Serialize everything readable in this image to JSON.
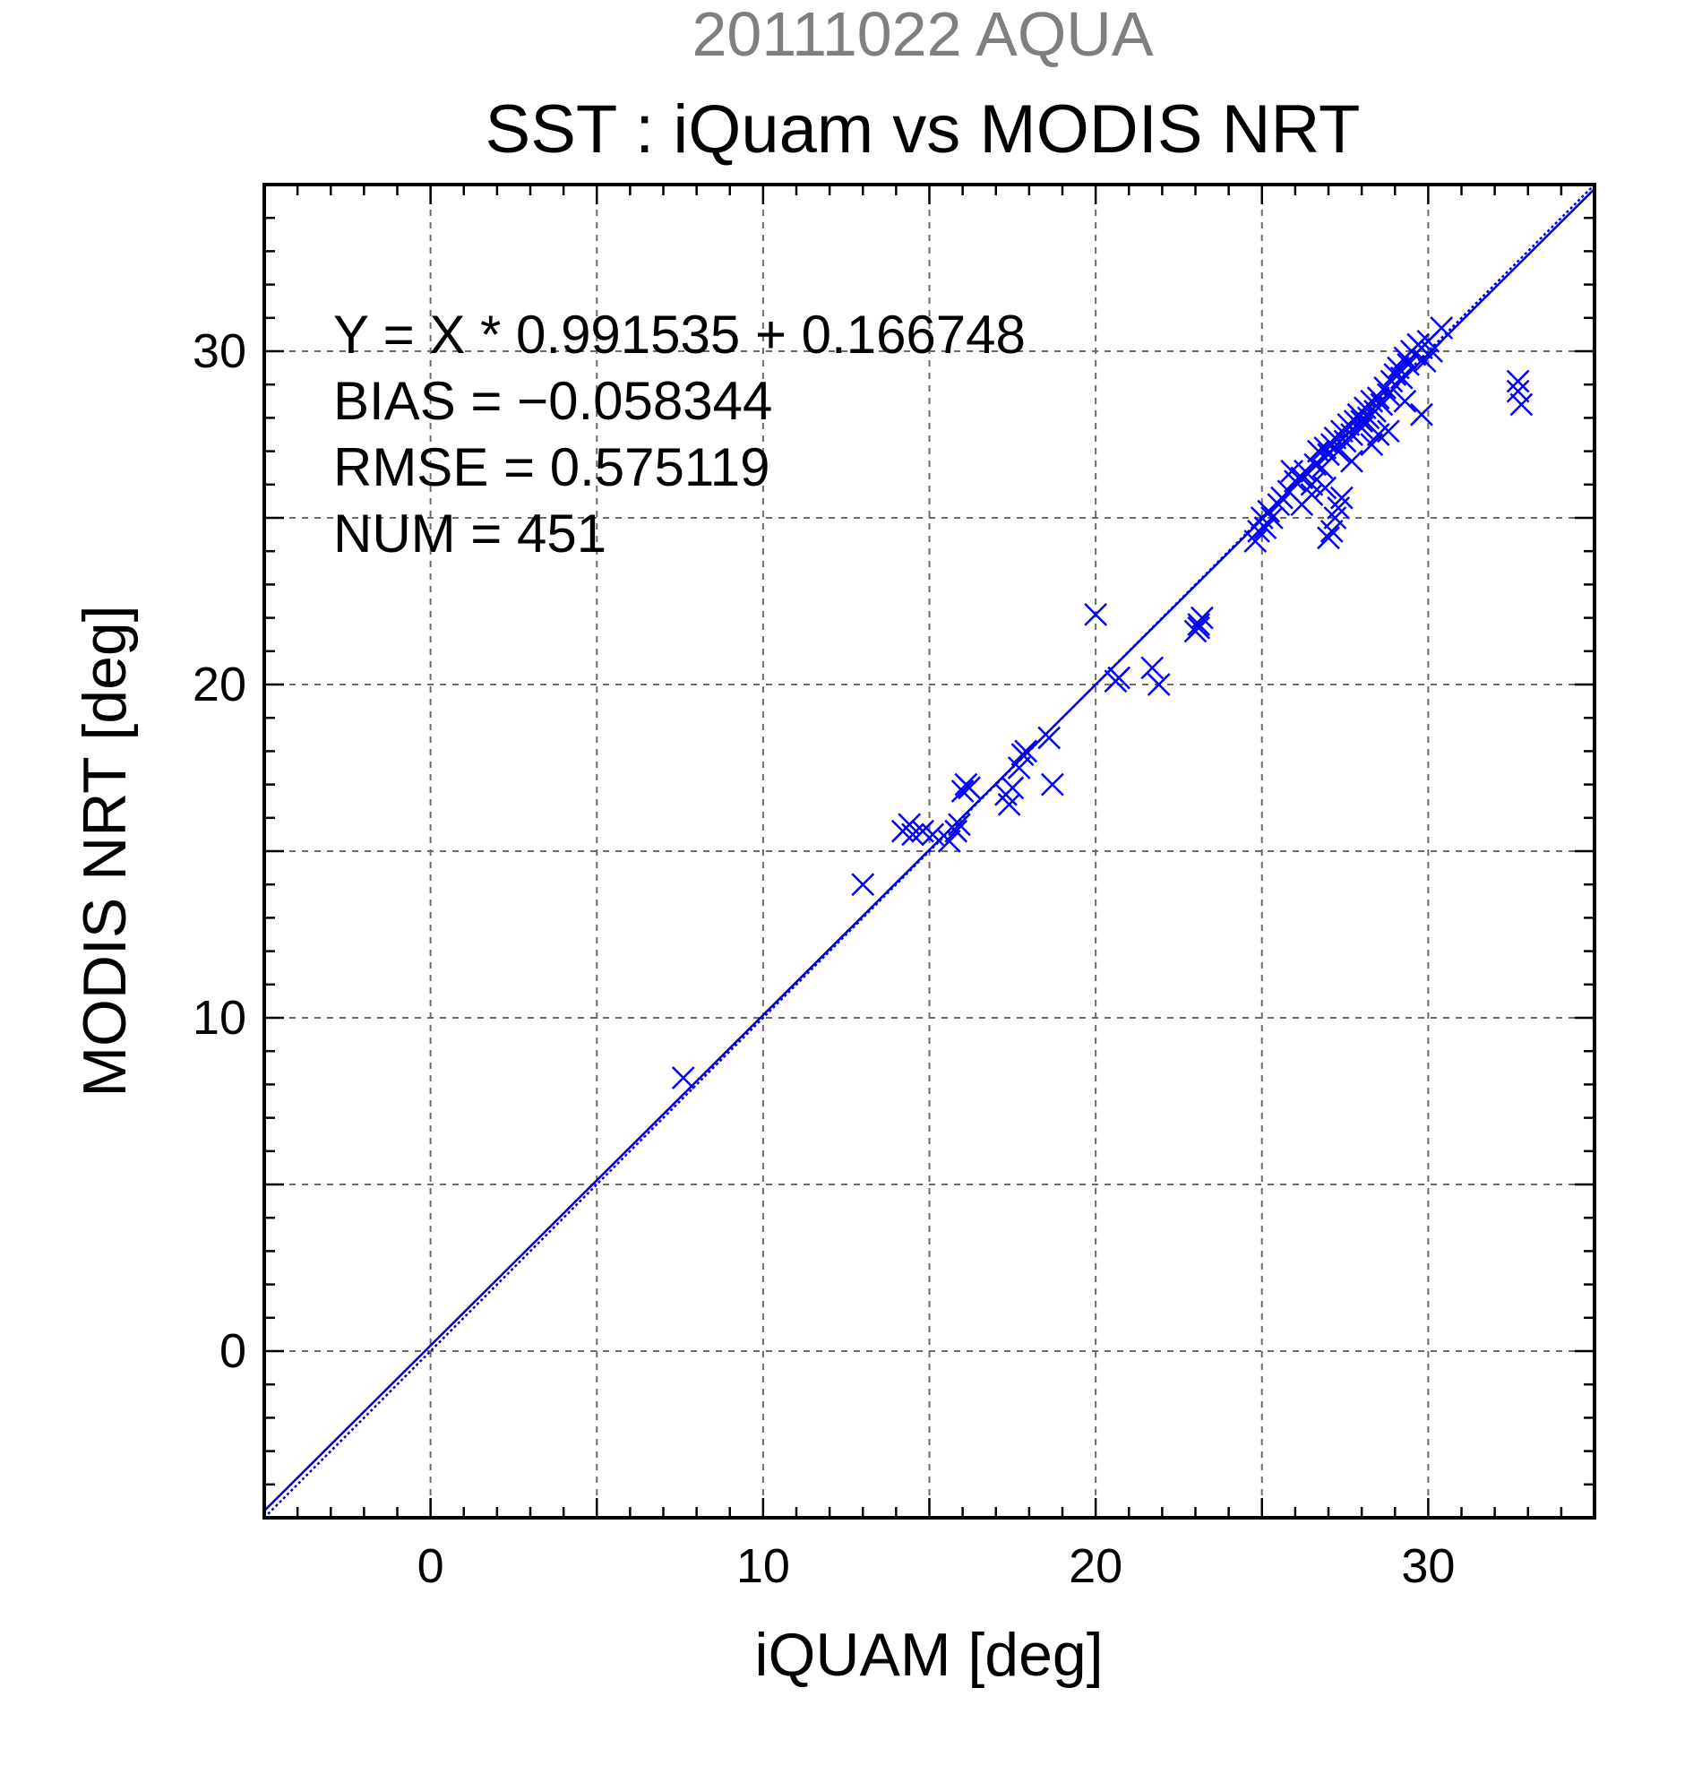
{
  "titles": {
    "date_title": "20111022 AQUA",
    "main_title": "SST : iQuam vs MODIS NRT"
  },
  "stats": {
    "line1": "Y = X * 0.991535 + 0.166748",
    "line2": "BIAS = −0.058344",
    "line3": "RMSE = 0.575119",
    "line4": "NUM = 451"
  },
  "colors": {
    "marker": "#0000ff",
    "fit_line": "#0000cc",
    "date_title": "#7f7f7f"
  },
  "chart_data": {
    "type": "scatter",
    "title": "SST : iQuam vs MODIS NRT",
    "subtitle": "20111022 AQUA",
    "xlabel": "iQUAM [deg]",
    "ylabel": "MODIS NRT [deg]",
    "xlim": [
      -5,
      35
    ],
    "ylim": [
      -5,
      35
    ],
    "xticks": [
      0,
      10,
      20,
      30
    ],
    "yticks": [
      0,
      10,
      20,
      30
    ],
    "grid": true,
    "marker": "x",
    "fit": {
      "slope": 0.991535,
      "intercept": 0.166748
    },
    "x": [
      7.6,
      13.0,
      14.2,
      14.4,
      14.5,
      14.8,
      15.1,
      15.6,
      15.8,
      15.9,
      16.0,
      16.1,
      16.2,
      17.3,
      17.4,
      17.5,
      17.7,
      17.8,
      17.9,
      18.6,
      18.7,
      20.0,
      20.6,
      20.7,
      21.7,
      21.9,
      23.0,
      23.1,
      23.2,
      23.1,
      24.8,
      24.9,
      25.0,
      25.1,
      25.2,
      25.3,
      25.5,
      25.6,
      25.8,
      26.0,
      26.2,
      26.3,
      26.5,
      26.6,
      26.7,
      26.8,
      26.9,
      27.0,
      27.1,
      27.2,
      27.3,
      27.4,
      27.5,
      27.6,
      27.7,
      27.8,
      27.9,
      28.0,
      28.1,
      28.2,
      28.3,
      28.4,
      28.5,
      28.6,
      28.7,
      28.8,
      28.9,
      29.0,
      29.1,
      29.2,
      29.3,
      29.4,
      29.5,
      29.6,
      29.7,
      29.8,
      29.9,
      30.0,
      30.1,
      30.4,
      27.0,
      27.1,
      27.3,
      27.4,
      26.9,
      27.2,
      28.3,
      28.5,
      29.8,
      32.7,
      32.7,
      32.8,
      26.2,
      26.5,
      25.9,
      28.8,
      29.3,
      27.7,
      28.0
    ],
    "y": [
      8.2,
      14.0,
      15.6,
      15.8,
      15.5,
      15.6,
      15.5,
      15.3,
      15.6,
      15.8,
      16.8,
      17.0,
      16.9,
      16.7,
      16.4,
      16.9,
      17.5,
      17.9,
      18.0,
      18.4,
      17.0,
      22.1,
      20.1,
      20.2,
      20.5,
      20.0,
      21.6,
      21.8,
      22.0,
      21.7,
      24.3,
      24.6,
      25.0,
      24.7,
      25.2,
      25.0,
      25.4,
      25.6,
      25.8,
      26.1,
      26.2,
      26.4,
      26.0,
      26.6,
      27.0,
      26.5,
      27.1,
      26.9,
      27.2,
      27.4,
      27.0,
      27.6,
      27.3,
      27.8,
      27.5,
      27.9,
      28.1,
      27.7,
      28.3,
      28.0,
      28.5,
      28.2,
      28.6,
      28.4,
      28.9,
      28.7,
      29.1,
      29.3,
      29.5,
      29.2,
      29.8,
      29.6,
      30.0,
      29.9,
      30.2,
      30.1,
      29.7,
      30.3,
      30.0,
      30.7,
      24.4,
      24.6,
      25.3,
      25.6,
      25.9,
      25.0,
      27.2,
      27.5,
      28.1,
      29.1,
      28.8,
      28.4,
      25.4,
      25.7,
      26.4,
      27.6,
      28.5,
      26.7,
      27.9
    ]
  }
}
